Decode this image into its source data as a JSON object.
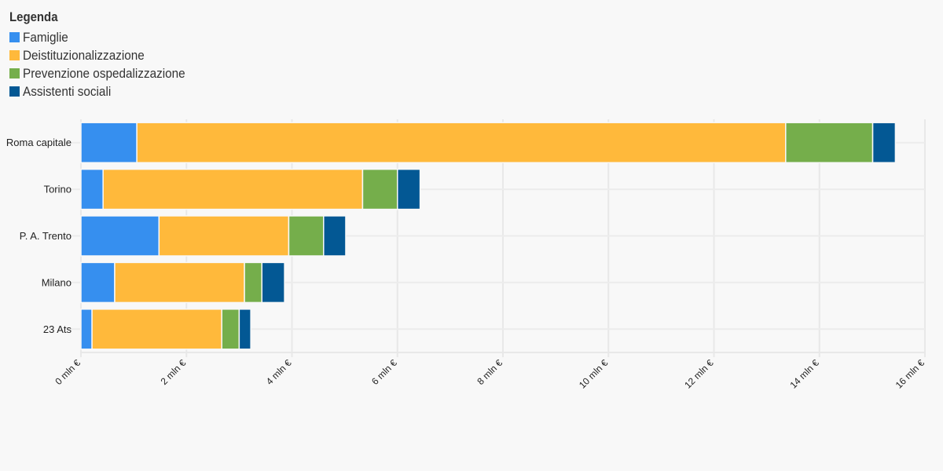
{
  "chart_data": {
    "type": "bar",
    "orientation": "horizontal",
    "stacked": true,
    "legend_title": "Legenda",
    "legend_position": "top-left",
    "categories": [
      "Roma capitale",
      "Torino",
      "P. A. Trento",
      "Milano",
      "23 Ats"
    ],
    "series": [
      {
        "name": "Famiglie",
        "color": "#368fef",
        "values": [
          1.06,
          0.42,
          1.48,
          0.64,
          0.21
        ]
      },
      {
        "name": "Deistituzionalizzazione",
        "color": "#ffb93b",
        "values": [
          12.3,
          4.92,
          2.46,
          2.46,
          2.46
        ]
      },
      {
        "name": "Prevenzione ospedalizzazione",
        "color": "#75ae4b",
        "values": [
          1.65,
          0.66,
          0.66,
          0.33,
          0.33
        ]
      },
      {
        "name": "Assistenti sociali",
        "color": "#035894",
        "values": [
          0.43,
          0.43,
          0.42,
          0.43,
          0.22
        ]
      }
    ],
    "xlim": [
      0,
      16
    ],
    "xticks": [
      0,
      2,
      4,
      6,
      8,
      10,
      12,
      14,
      16
    ],
    "xtick_labels": [
      "0 mln €",
      "2 mln €",
      "4 mln €",
      "6 mln €",
      "8 mln €",
      "10 mln €",
      "12 mln €",
      "14 mln €",
      "16 mln €"
    ],
    "xlabel": "",
    "ylabel": "",
    "grid": true
  }
}
